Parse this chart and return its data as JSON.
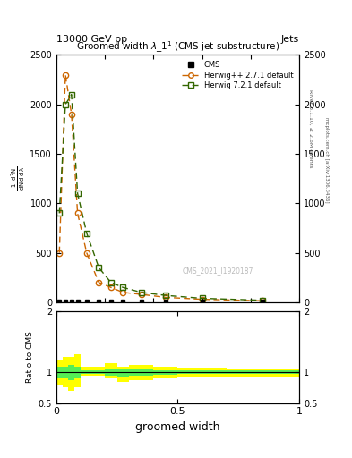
{
  "top_label": "13000 GeV pp",
  "top_right_label": "Jets",
  "subtitle": "Groomed width λ_1¹ (CMS jet substructure)",
  "watermark": "CMS_2021_I1920187",
  "xlabel": "groomed width",
  "ylabel_ratio": "Ratio to CMS",
  "right_label1": "Rivet 3.1.10, ≥ 2.6M events",
  "right_label2": "mcplots.cern.ch [arXiv:1306.3436]",
  "herwig1_x": [
    0.0125,
    0.0375,
    0.0625,
    0.0875,
    0.125,
    0.175,
    0.225,
    0.275,
    0.35,
    0.45,
    0.6,
    0.85
  ],
  "herwig1_y": [
    500,
    2300,
    1900,
    900,
    500,
    200,
    150,
    100,
    80,
    50,
    30,
    15
  ],
  "herwig2_x": [
    0.0125,
    0.0375,
    0.0625,
    0.0875,
    0.125,
    0.175,
    0.225,
    0.275,
    0.35,
    0.45,
    0.6,
    0.85
  ],
  "herwig2_y": [
    900,
    2000,
    2100,
    1100,
    700,
    350,
    200,
    150,
    100,
    70,
    40,
    20
  ],
  "cms_pts_x": [
    0.0125,
    0.0375,
    0.0625,
    0.0875,
    0.125,
    0.175,
    0.225,
    0.275,
    0.35,
    0.45,
    0.6,
    0.85
  ],
  "cms_pts_y": [
    5,
    5,
    5,
    5,
    5,
    5,
    5,
    5,
    5,
    5,
    5,
    5
  ],
  "ratio_x_edges": [
    0.0,
    0.025,
    0.05,
    0.075,
    0.1,
    0.15,
    0.2,
    0.25,
    0.3,
    0.4,
    0.5,
    0.7,
    1.0
  ],
  "ratio_yellow_lo": [
    0.8,
    0.75,
    0.7,
    0.75,
    0.95,
    0.95,
    0.9,
    0.85,
    0.88,
    0.9,
    0.92,
    0.93
  ],
  "ratio_yellow_hi": [
    1.2,
    1.25,
    1.25,
    1.3,
    1.1,
    1.1,
    1.15,
    1.1,
    1.12,
    1.1,
    1.08,
    1.07
  ],
  "ratio_green_lo": [
    0.9,
    0.9,
    0.88,
    0.9,
    0.97,
    0.97,
    0.95,
    0.93,
    0.95,
    0.96,
    0.97,
    0.97
  ],
  "ratio_green_hi": [
    1.1,
    1.1,
    1.12,
    1.1,
    1.03,
    1.03,
    1.05,
    1.07,
    1.05,
    1.04,
    1.03,
    1.03
  ],
  "ylim_main": [
    0,
    2500
  ],
  "ylim_ratio": [
    0.5,
    2.0
  ],
  "xlim": [
    0.0,
    1.0
  ],
  "color_herwig1": "#cc6600",
  "color_herwig2": "#336600",
  "yticks_main": [
    0,
    500,
    1000,
    1500,
    2000,
    2500
  ],
  "yticks_ratio": [
    0.5,
    1.0,
    2.0
  ],
  "xticks": [
    0.0,
    0.5,
    1.0
  ]
}
